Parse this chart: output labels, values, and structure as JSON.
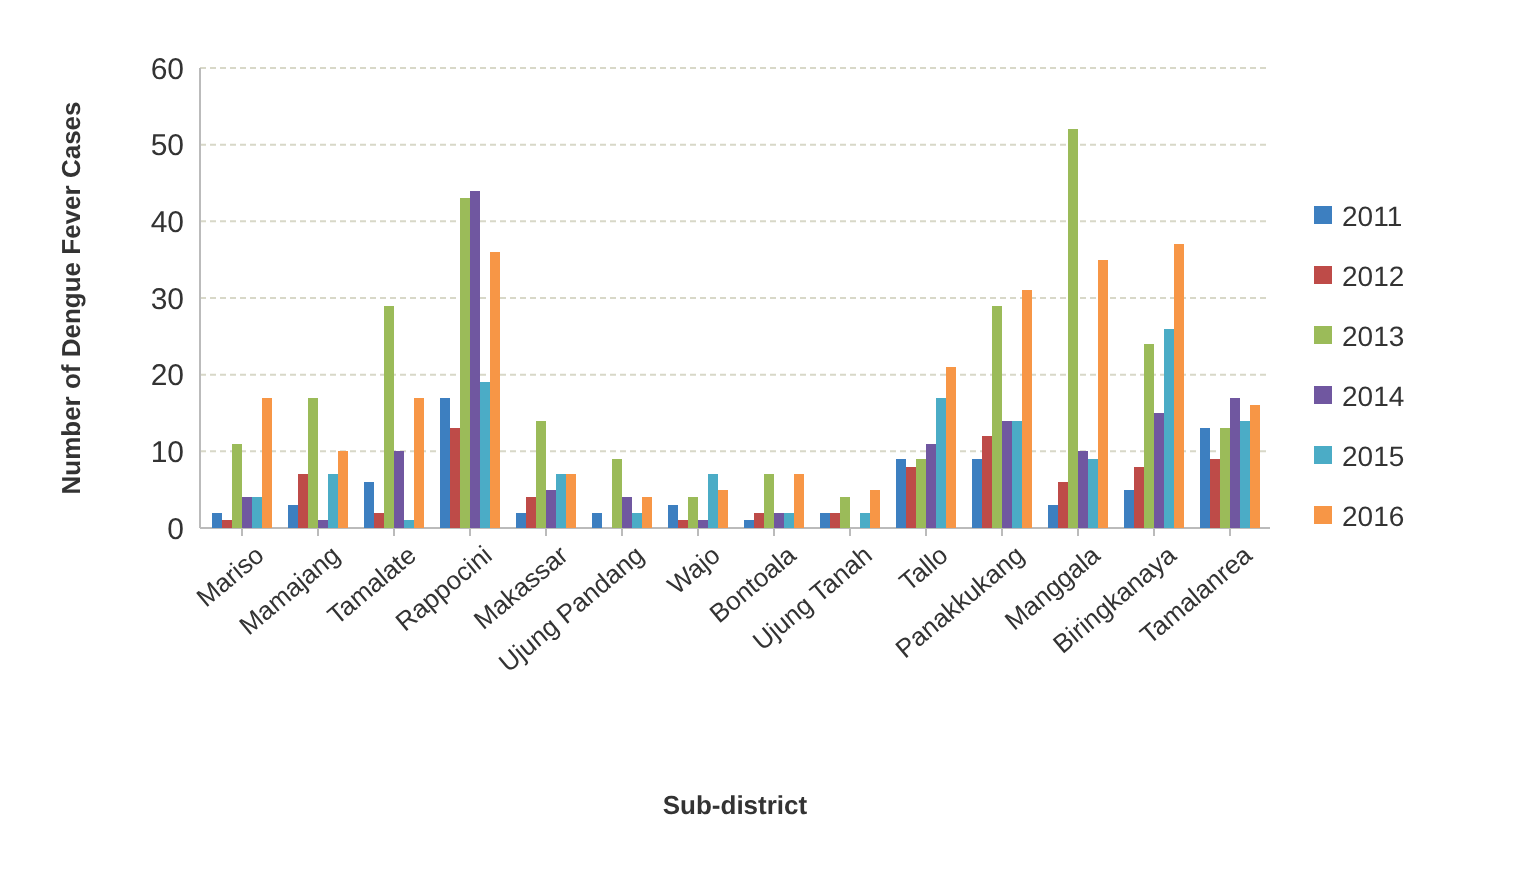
{
  "chart_data": {
    "type": "bar",
    "xlabel": "Sub-district",
    "ylabel": "Number of Dengue Fever Cases",
    "categories": [
      "Mariso",
      "Mamajang",
      "Tamalate",
      "Rappocini",
      "Makassar",
      "Ujung Pandang",
      "Wajo",
      "Bontoala",
      "Ujung Tanah",
      "Tallo",
      "Panakkukang",
      "Manggala",
      "Biringkanaya",
      "Tamalanrea"
    ],
    "series": [
      {
        "name": "2011",
        "color": "#3d7fc0",
        "values": [
          2,
          3,
          6,
          17,
          2,
          2,
          3,
          1,
          2,
          9,
          9,
          3,
          5,
          13
        ]
      },
      {
        "name": "2012",
        "color": "#be4b48",
        "values": [
          1,
          7,
          2,
          13,
          4,
          0,
          1,
          2,
          2,
          8,
          12,
          6,
          8,
          9
        ]
      },
      {
        "name": "2013",
        "color": "#9bbb59",
        "values": [
          11,
          17,
          29,
          43,
          14,
          9,
          4,
          7,
          4,
          9,
          29,
          52,
          24,
          13
        ]
      },
      {
        "name": "2014",
        "color": "#7057a0",
        "values": [
          4,
          1,
          10,
          44,
          5,
          4,
          1,
          2,
          0,
          11,
          14,
          10,
          15,
          17
        ]
      },
      {
        "name": "2015",
        "color": "#4bacc6",
        "values": [
          4,
          7,
          1,
          19,
          7,
          2,
          7,
          2,
          2,
          17,
          14,
          9,
          26,
          14
        ]
      },
      {
        "name": "2016",
        "color": "#f79646",
        "values": [
          17,
          10,
          17,
          36,
          7,
          4,
          5,
          7,
          5,
          21,
          31,
          35,
          37,
          16
        ]
      }
    ],
    "ylim": [
      0,
      60
    ],
    "yticks": [
      0,
      10,
      20,
      30,
      40,
      50,
      60
    ],
    "grid": "y",
    "legend": "right"
  }
}
